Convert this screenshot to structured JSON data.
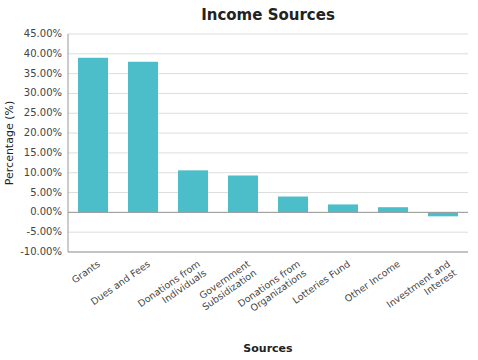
{
  "chart_data": {
    "type": "bar",
    "title": "Income Sources",
    "xlabel": "Sources",
    "ylabel": "Percentage (%)",
    "categories": [
      "Grants",
      "Dues and Fees",
      "Donations from\nIndividuals",
      "Government\nSubsidization",
      "Donations from\nOrganizations",
      "Lotteries Fund",
      "Other Income",
      "Investment and\nInterest"
    ],
    "values": [
      0.39,
      0.38,
      0.106,
      0.093,
      0.04,
      0.02,
      0.013,
      -0.01
    ],
    "color": "#4BBEC9",
    "ylim": [
      -0.1,
      0.45
    ],
    "yticks": [
      {
        "value": -0.1,
        "label": "-10.00%"
      },
      {
        "value": -0.05,
        "label": "-5.00%"
      },
      {
        "value": 0.0,
        "label": "0.00%"
      },
      {
        "value": 0.05,
        "label": "5.00%"
      },
      {
        "value": 0.1,
        "label": "10.00%"
      },
      {
        "value": 0.15,
        "label": "15.00%"
      },
      {
        "value": 0.2,
        "label": "20.00%"
      },
      {
        "value": 0.25,
        "label": "25.00%"
      },
      {
        "value": 0.3,
        "label": "30.00%"
      },
      {
        "value": 0.35,
        "label": "35.00%"
      },
      {
        "value": 0.4,
        "label": "40.00%"
      },
      {
        "value": 0.45,
        "label": "45.00%"
      }
    ],
    "grid": true
  }
}
